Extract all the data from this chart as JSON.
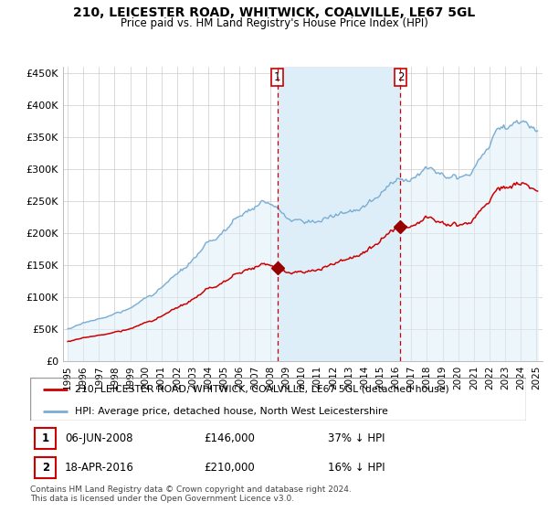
{
  "title": "210, LEICESTER ROAD, WHITWICK, COALVILLE, LE67 5GL",
  "subtitle": "Price paid vs. HM Land Registry's House Price Index (HPI)",
  "property_label": "210, LEICESTER ROAD, WHITWICK, COALVILLE, LE67 5GL (detached house)",
  "hpi_label": "HPI: Average price, detached house, North West Leicestershire",
  "sale1_date": "06-JUN-2008",
  "sale1_price": "£146,000",
  "sale1_info": "37% ↓ HPI",
  "sale2_date": "18-APR-2016",
  "sale2_price": "£210,000",
  "sale2_info": "16% ↓ HPI",
  "footnote": "Contains HM Land Registry data © Crown copyright and database right 2024.\nThis data is licensed under the Open Government Licence v3.0.",
  "ylim": [
    0,
    460000
  ],
  "yticks": [
    0,
    50000,
    100000,
    150000,
    200000,
    250000,
    300000,
    350000,
    400000,
    450000
  ],
  "ytick_labels": [
    "£0",
    "£50K",
    "£100K",
    "£150K",
    "£200K",
    "£250K",
    "£300K",
    "£350K",
    "£400K",
    "£450K"
  ],
  "sale1_x": 2008.43,
  "sale1_y": 146000,
  "sale2_x": 2016.3,
  "sale2_y": 210000,
  "property_color": "#cc0000",
  "hpi_color": "#7aadd4",
  "hpi_fill_color": "#ddeef8",
  "vline_color": "#cc0000",
  "sale_marker_color": "#990000",
  "span_fill_color": "#ddeef8",
  "xlim_left": 1994.7,
  "xlim_right": 2025.4
}
